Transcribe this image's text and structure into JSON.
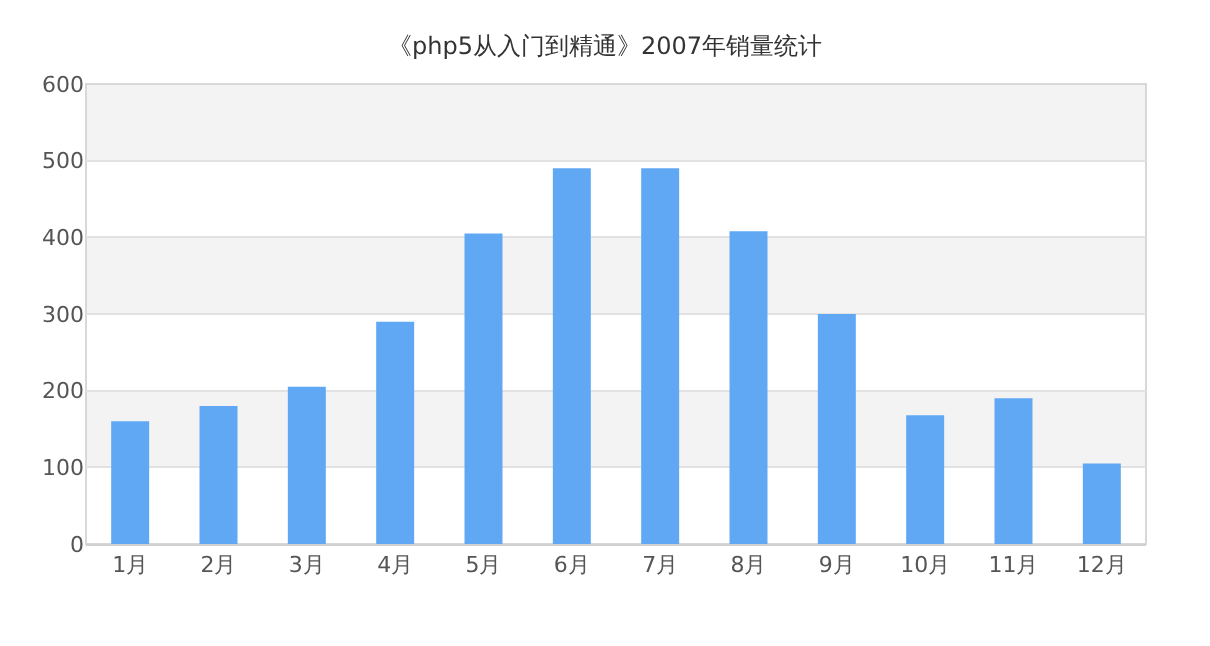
{
  "chart_data": {
    "type": "bar",
    "title": "《php5从入门到精通》2007年销量统计",
    "categories": [
      "1月",
      "2月",
      "3月",
      "4月",
      "5月",
      "6月",
      "7月",
      "8月",
      "9月",
      "10月",
      "11月",
      "12月"
    ],
    "values": [
      160,
      180,
      205,
      290,
      405,
      490,
      490,
      408,
      300,
      168,
      190,
      105
    ],
    "color": "#60a8f4",
    "ylim": [
      0,
      600
    ],
    "yticks": [
      0,
      100,
      200,
      300,
      400,
      500,
      600
    ],
    "grid": "y",
    "bands": [
      {
        "axis": "y",
        "from": 100,
        "to": 200,
        "color": "#f3f3f3"
      },
      {
        "axis": "y",
        "from": 300,
        "to": 400,
        "color": "#f3f3f3"
      },
      {
        "axis": "y",
        "from": 500,
        "to": 600,
        "color": "#f3f3f3"
      }
    ]
  }
}
